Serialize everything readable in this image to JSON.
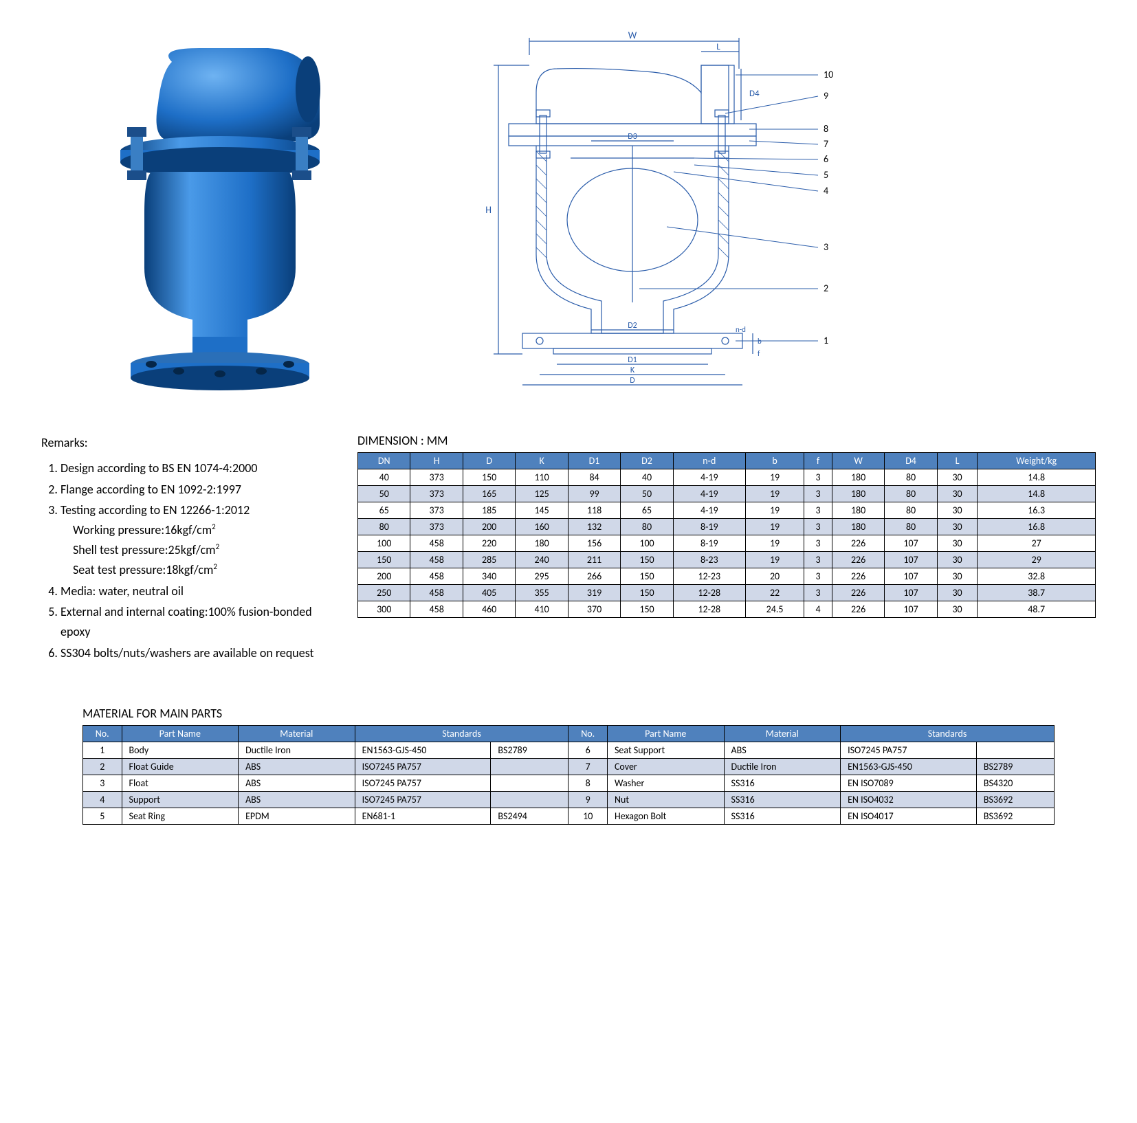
{
  "remarks": {
    "title": "Remarks:",
    "item1": "Design according to BS EN 1074-4:2000",
    "item2": "Flange according to EN 1092-2:1997",
    "item3": "Testing according to EN 12266-1:2012",
    "item3a": "Working pressure:16kgf/cm",
    "item3b": "Shell test pressure:25kgf/cm",
    "item3c": "Seat test pressure:18kgf/cm",
    "item4": "Media: water, neutral oil",
    "item5": "External and internal coating:100% fusion-bonded epoxy",
    "item6": "SS304 bolts/nuts/washers are available on request"
  },
  "dimension": {
    "title": "DIMENSION : MM",
    "columns": [
      "DN",
      "H",
      "D",
      "K",
      "D1",
      "D2",
      "n-d",
      "b",
      "f",
      "W",
      "D4",
      "L",
      "Weight/kg"
    ],
    "rows": [
      [
        "40",
        "373",
        "150",
        "110",
        "84",
        "40",
        "4-19",
        "19",
        "3",
        "180",
        "80",
        "30",
        "14.8"
      ],
      [
        "50",
        "373",
        "165",
        "125",
        "99",
        "50",
        "4-19",
        "19",
        "3",
        "180",
        "80",
        "30",
        "14.8"
      ],
      [
        "65",
        "373",
        "185",
        "145",
        "118",
        "65",
        "4-19",
        "19",
        "3",
        "180",
        "80",
        "30",
        "16.3"
      ],
      [
        "80",
        "373",
        "200",
        "160",
        "132",
        "80",
        "8-19",
        "19",
        "3",
        "180",
        "80",
        "30",
        "16.8"
      ],
      [
        "100",
        "458",
        "220",
        "180",
        "156",
        "100",
        "8-19",
        "19",
        "3",
        "226",
        "107",
        "30",
        "27"
      ],
      [
        "150",
        "458",
        "285",
        "240",
        "211",
        "150",
        "8-23",
        "19",
        "3",
        "226",
        "107",
        "30",
        "29"
      ],
      [
        "200",
        "458",
        "340",
        "295",
        "266",
        "150",
        "12-23",
        "20",
        "3",
        "226",
        "107",
        "30",
        "32.8"
      ],
      [
        "250",
        "458",
        "405",
        "355",
        "319",
        "150",
        "12-28",
        "22",
        "3",
        "226",
        "107",
        "30",
        "38.7"
      ],
      [
        "300",
        "458",
        "460",
        "410",
        "370",
        "150",
        "12-28",
        "24.5",
        "4",
        "226",
        "107",
        "30",
        "48.7"
      ]
    ]
  },
  "materials": {
    "title": "MATERIAL FOR MAIN PARTS",
    "columns": [
      "No.",
      "Part Name",
      "Material",
      "Standards",
      "No.",
      "Part Name",
      "Material",
      "Standards"
    ],
    "rows": [
      [
        "1",
        "Body",
        "Ductile Iron",
        "EN1563-GJS-450",
        "BS2789",
        "6",
        "Seat Support",
        "ABS",
        "ISO7245 PA757",
        ""
      ],
      [
        "2",
        "Float Guide",
        "ABS",
        "ISO7245 PA757",
        "",
        "7",
        "Cover",
        "Ductile Iron",
        "EN1563-GJS-450",
        "BS2789"
      ],
      [
        "3",
        "Float",
        "ABS",
        "ISO7245 PA757",
        "",
        "8",
        "Washer",
        "SS316",
        "EN ISO7089",
        "BS4320"
      ],
      [
        "4",
        "Support",
        "ABS",
        "ISO7245 PA757",
        "",
        "9",
        "Nut",
        "SS316",
        "EN ISO4032",
        "BS3692"
      ],
      [
        "5",
        "Seat Ring",
        "EPDM",
        "EN681-1",
        "BS2494",
        "10",
        "Hexagon Bolt",
        "SS316",
        "EN ISO4017",
        "BS3692"
      ]
    ]
  },
  "diagram": {
    "dim_labels": [
      "W",
      "L",
      "H",
      "D4",
      "D2",
      "D3",
      "D1",
      "K",
      "D",
      "n-d",
      "b",
      "f"
    ],
    "callouts": [
      "1",
      "2",
      "3",
      "4",
      "5",
      "6",
      "7",
      "8",
      "9",
      "10"
    ]
  },
  "colors": {
    "header_bg": "#4f81bd",
    "header_fg": "#ffffff",
    "alt_row_bg": "#d0d8e8",
    "valve_blue": "#1e6fc7",
    "valve_blue_light": "#4a9ae8",
    "valve_blue_dark": "#0a3f7a",
    "diagram_line": "#2a5caa"
  }
}
